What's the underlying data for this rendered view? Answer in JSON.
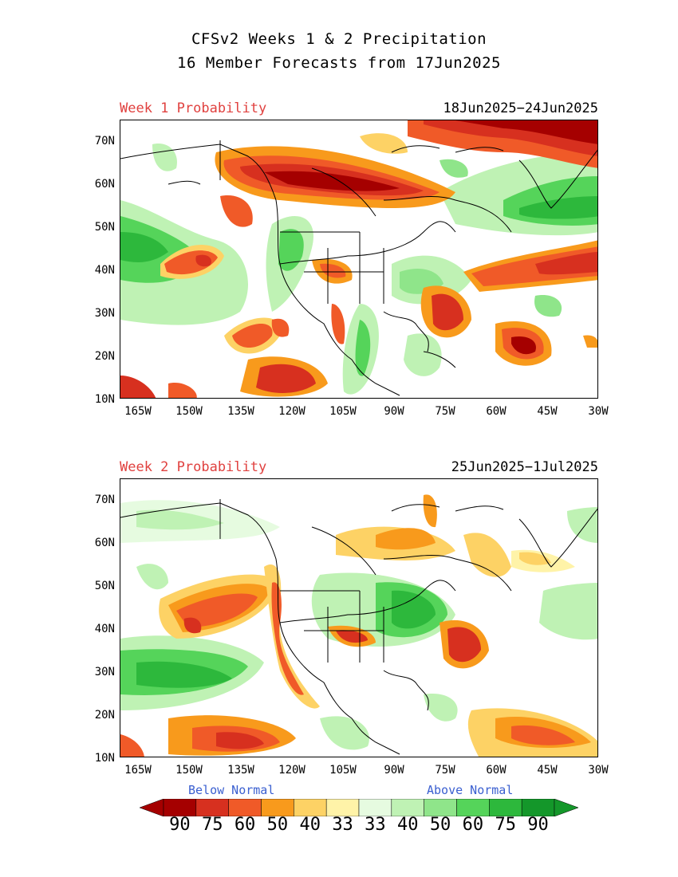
{
  "title_line1": "CFSv2 Weeks 1 & 2 Precipitation",
  "title_line2": "16 Member Forecasts from 17Jun2025",
  "week1": {
    "label": "Week 1 Probability",
    "dates": "18Jun2025−24Jun2025"
  },
  "week2": {
    "label": "Week 2 Probability",
    "dates": "25Jun2025−1Jul2025"
  },
  "lat_labels": [
    "70N",
    "60N",
    "50N",
    "40N",
    "30N",
    "20N",
    "10N"
  ],
  "lon_labels": [
    "165W",
    "150W",
    "135W",
    "120W",
    "105W",
    "90W",
    "75W",
    "60W",
    "45W",
    "30W"
  ],
  "legend": {
    "below_label": "Below Normal",
    "above_label": "Above Normal",
    "below_values": [
      "90",
      "75",
      "60",
      "50",
      "40",
      "33"
    ],
    "above_values": [
      "33",
      "40",
      "50",
      "60",
      "75",
      "90"
    ],
    "below_colors": [
      "#a50000",
      "#d7301f",
      "#f05a28",
      "#f89a1c",
      "#fdd265",
      "#fff3a8"
    ],
    "above_colors": [
      "#e6fbe0",
      "#bff2b4",
      "#8fe58a",
      "#55d45a",
      "#2db83c",
      "#14972a"
    ]
  }
}
